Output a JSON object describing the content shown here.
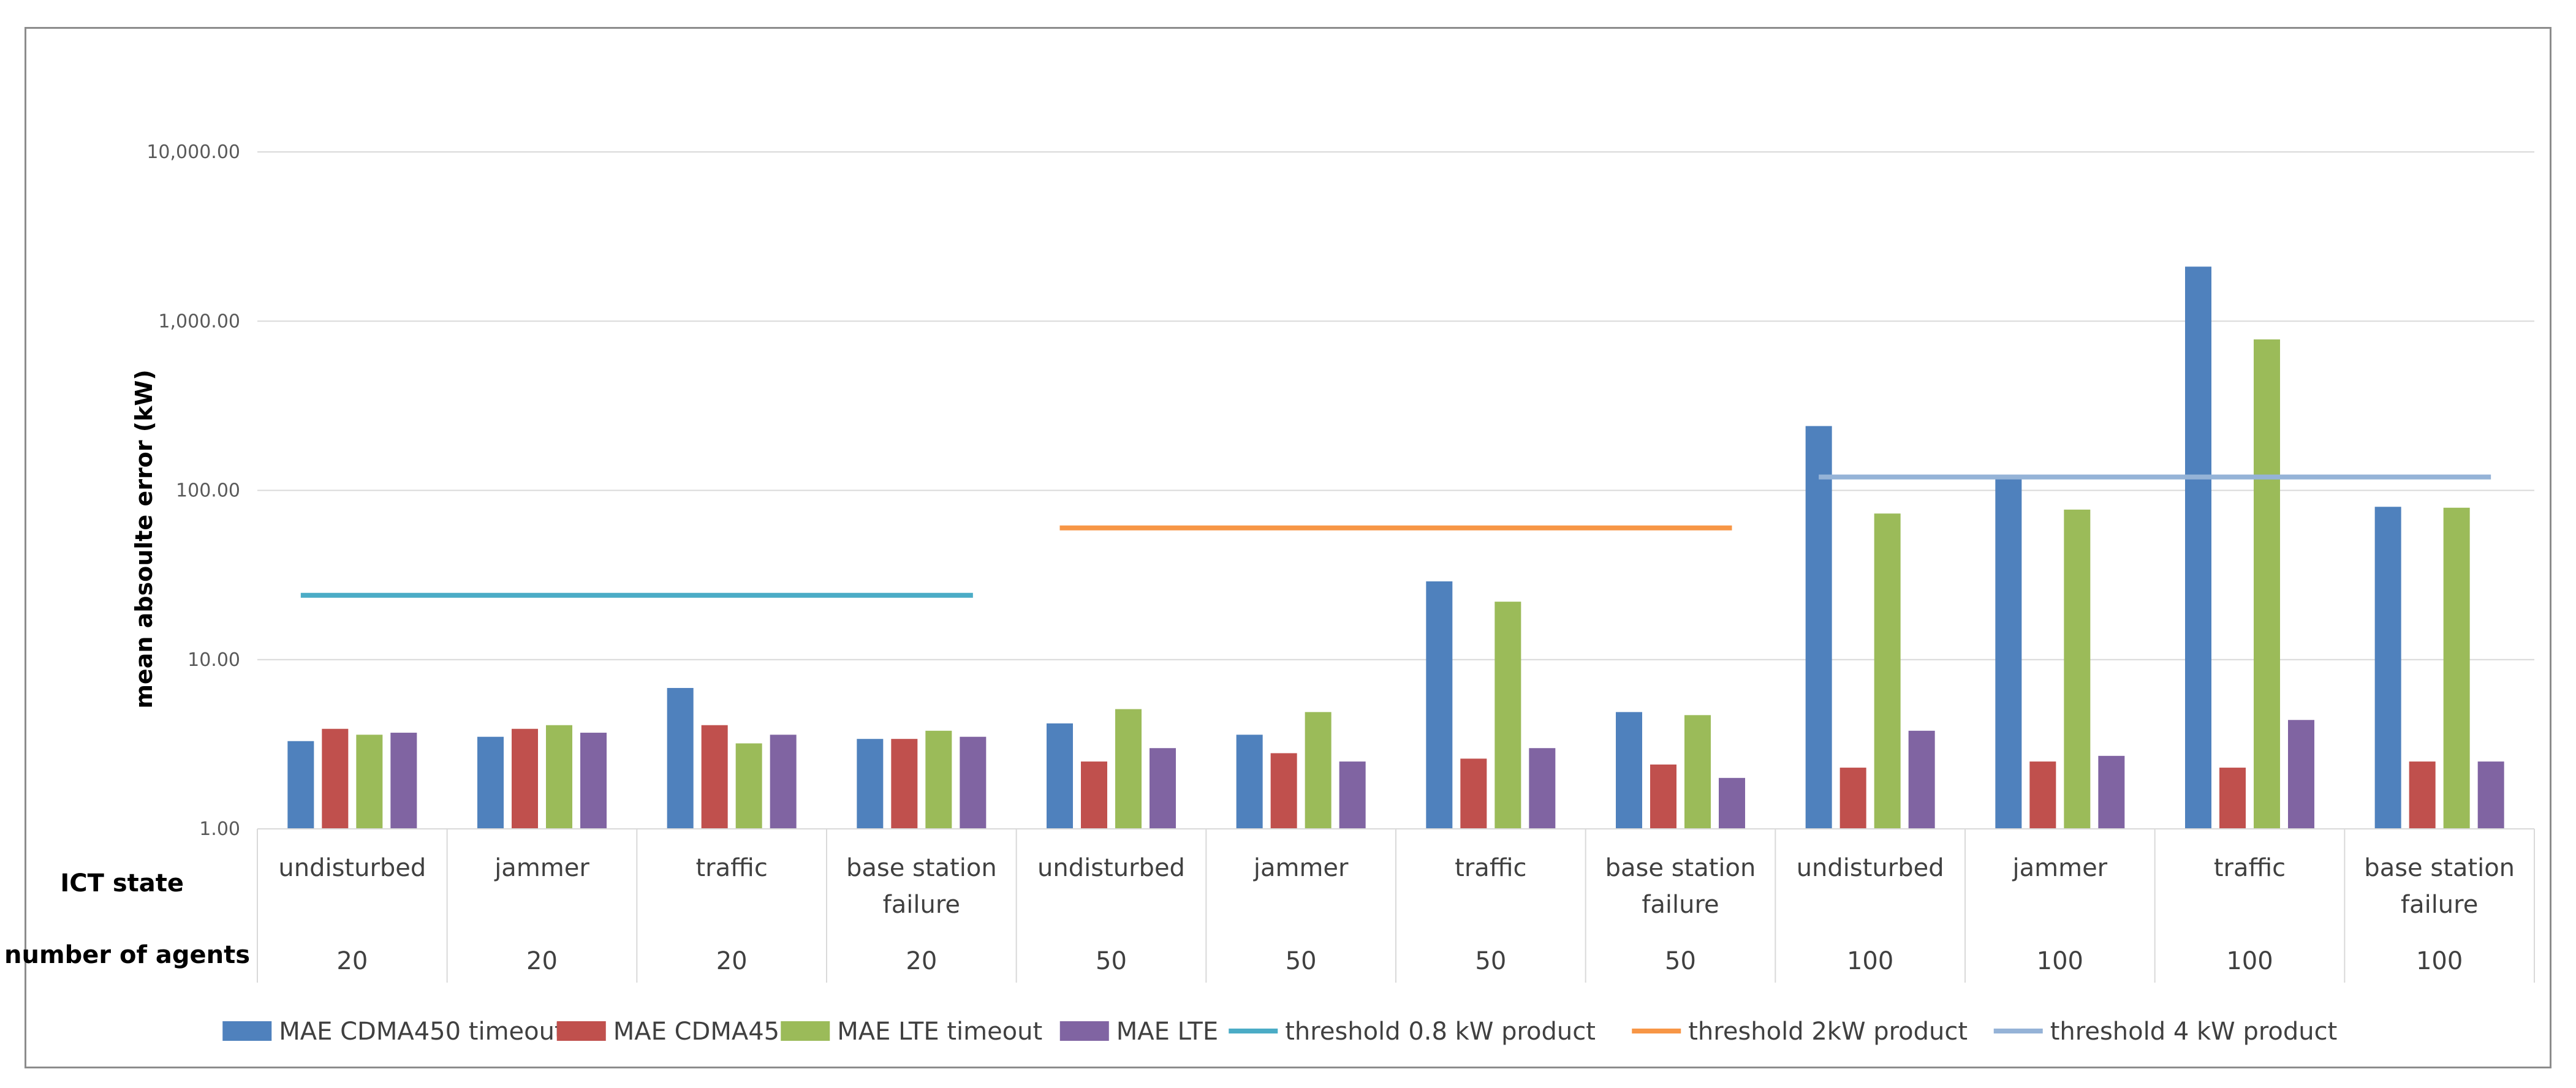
{
  "chart_data": {
    "type": "bar",
    "scale": "log",
    "ylabel": "mean absoulte error (kW)",
    "ylim": [
      1,
      10000
    ],
    "yticks": [
      1,
      10,
      100,
      1000,
      10000
    ],
    "ytick_labels": [
      "1.00",
      "10.00",
      "100.00",
      "1,000.00",
      "10,000.00"
    ],
    "row_labels": [
      "ICT state",
      "number of agents"
    ],
    "categories": [
      {
        "state": [
          "undisturbed"
        ],
        "agents": "20"
      },
      {
        "state": [
          "jammer"
        ],
        "agents": "20"
      },
      {
        "state": [
          "traffic"
        ],
        "agents": "20"
      },
      {
        "state": [
          "base station",
          "failure"
        ],
        "agents": "20"
      },
      {
        "state": [
          "undisturbed"
        ],
        "agents": "50"
      },
      {
        "state": [
          "jammer"
        ],
        "agents": "50"
      },
      {
        "state": [
          "traffic"
        ],
        "agents": "50"
      },
      {
        "state": [
          "base station",
          "failure"
        ],
        "agents": "50"
      },
      {
        "state": [
          "undisturbed"
        ],
        "agents": "100"
      },
      {
        "state": [
          "jammer"
        ],
        "agents": "100"
      },
      {
        "state": [
          "traffic"
        ],
        "agents": "100"
      },
      {
        "state": [
          "base station",
          "failure"
        ],
        "agents": "100"
      }
    ],
    "series": [
      {
        "name": "MAE CDMA450 timeout",
        "color": "#4f81bd",
        "values": [
          3.3,
          3.5,
          6.8,
          3.4,
          4.2,
          3.6,
          29,
          4.9,
          240,
          120,
          2100,
          80
        ]
      },
      {
        "name": "MAE CDMA450",
        "color": "#c0504d",
        "values": [
          3.9,
          3.9,
          4.1,
          3.4,
          2.5,
          2.8,
          2.6,
          2.4,
          2.3,
          2.5,
          2.3,
          2.5
        ]
      },
      {
        "name": "MAE LTE timeout",
        "color": "#9bbb59",
        "values": [
          3.6,
          4.1,
          3.2,
          3.8,
          5.1,
          4.9,
          22,
          4.7,
          73,
          77,
          780,
          79
        ]
      },
      {
        "name": "MAE LTE",
        "color": "#8064a2",
        "values": [
          3.7,
          3.7,
          3.6,
          3.5,
          3.0,
          2.5,
          3.0,
          2.0,
          3.8,
          2.7,
          4.4,
          2.5
        ]
      }
    ],
    "thresholds": [
      {
        "name": "threshold 0.8 kW product",
        "color": "#4bacc6",
        "value": 24,
        "from_category": 0,
        "to_category": 3
      },
      {
        "name": "threshold 2kW product",
        "color": "#f79646",
        "value": 60,
        "from_category": 4,
        "to_category": 7
      },
      {
        "name": "threshold 4 kW product",
        "color": "#95b3d7",
        "value": 120,
        "from_category": 8,
        "to_category": 11
      }
    ],
    "legend_position": "bottom",
    "grid": true
  }
}
